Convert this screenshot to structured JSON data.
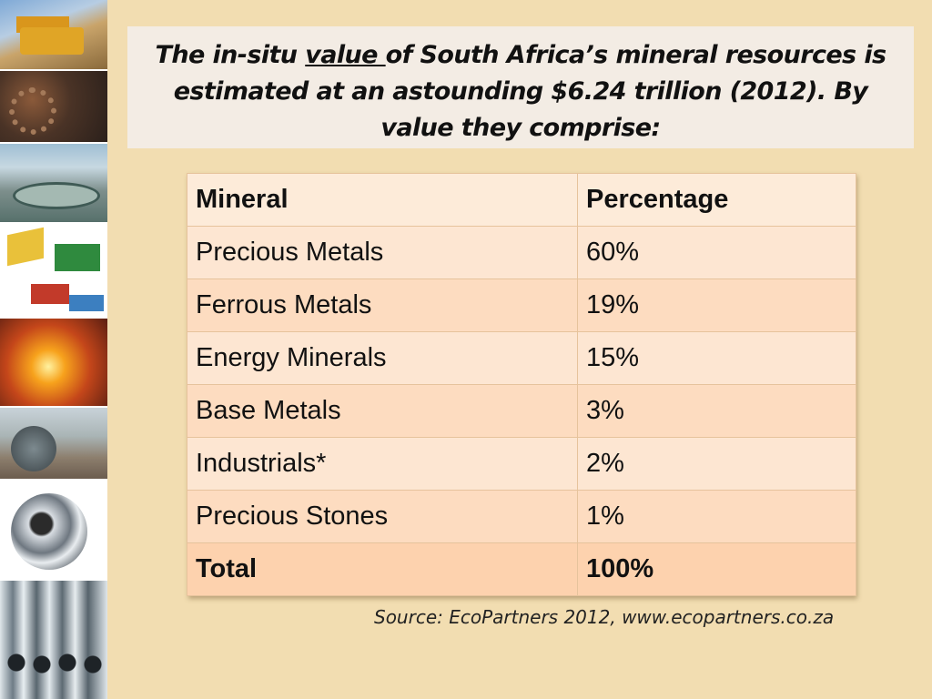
{
  "title": {
    "before": "The in-situ ",
    "underlined": "value ",
    "after": "of South Africa’s mineral resources is estimated at an astounding $6.24 trillion (2012). By value they comprise:"
  },
  "table": {
    "headers": [
      "Mineral",
      "Percentage"
    ],
    "rows": [
      [
        "Precious Metals",
        "60%"
      ],
      [
        "Ferrous Metals",
        "19%"
      ],
      [
        "Energy Minerals",
        "15%"
      ],
      [
        "Base Metals",
        "3%"
      ],
      [
        "Industrials*",
        "2%"
      ],
      [
        "Precious Stones",
        "1%"
      ]
    ],
    "total": [
      "Total",
      "100%"
    ]
  },
  "source": "Source: EcoPartners 2012, www.ecopartners.co.za"
}
